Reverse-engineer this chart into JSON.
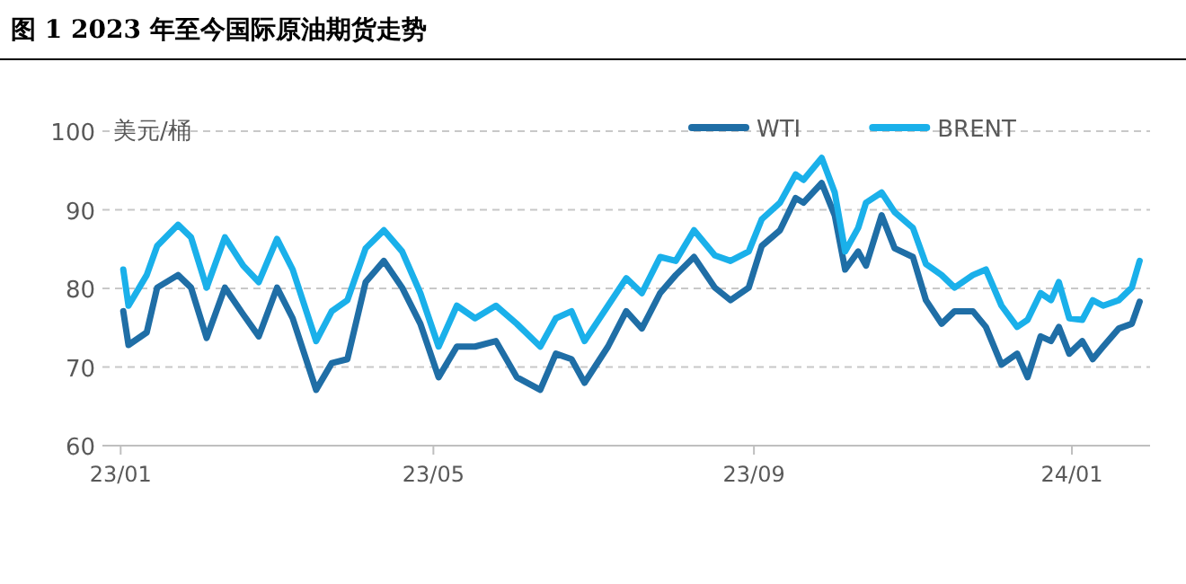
{
  "chart_data": {
    "type": "line",
    "title": "图 1 2023 年至今国际原油期货走势",
    "ylabel": "美元/桶",
    "x": [
      "2023-01-02",
      "2023-01-04",
      "2023-01-11",
      "2023-01-15",
      "2023-01-23",
      "2023-01-28",
      "2023-02-03",
      "2023-02-10",
      "2023-02-17",
      "2023-02-23",
      "2023-03-02",
      "2023-03-08",
      "2023-03-17",
      "2023-03-23",
      "2023-03-29",
      "2023-04-05",
      "2023-04-12",
      "2023-04-19",
      "2023-04-26",
      "2023-05-03",
      "2023-05-10",
      "2023-05-17",
      "2023-05-25",
      "2023-06-02",
      "2023-06-11",
      "2023-06-17",
      "2023-06-23",
      "2023-06-28",
      "2023-07-07",
      "2023-07-14",
      "2023-07-20",
      "2023-07-27",
      "2023-08-02",
      "2023-08-09",
      "2023-08-17",
      "2023-08-23",
      "2023-08-30",
      "2023-09-04",
      "2023-09-11",
      "2023-09-17",
      "2023-09-20",
      "2023-09-27",
      "2023-10-02",
      "2023-10-06",
      "2023-10-11",
      "2023-10-14",
      "2023-10-20",
      "2023-10-25",
      "2023-11-01",
      "2023-11-06",
      "2023-11-12",
      "2023-11-17",
      "2023-11-24",
      "2023-11-29",
      "2023-12-05",
      "2023-12-11",
      "2023-12-15",
      "2023-12-20",
      "2023-12-24",
      "2023-12-27",
      "2023-12-31",
      "2024-01-05",
      "2024-01-09",
      "2024-01-13",
      "2024-01-19",
      "2024-01-24",
      "2024-01-27"
    ],
    "series": [
      {
        "name": "WTI",
        "color": "#1f6ea6",
        "values": [
          77.1,
          72.8,
          74.4,
          80.1,
          81.7,
          80.1,
          73.7,
          80.1,
          76.7,
          73.9,
          80.1,
          76.2,
          67.1,
          70.5,
          71.0,
          80.8,
          83.5,
          80.1,
          75.5,
          68.7,
          72.6,
          72.6,
          73.3,
          68.7,
          67.1,
          71.7,
          71.0,
          68.0,
          72.6,
          77.1,
          74.9,
          79.4,
          81.7,
          84.0,
          80.1,
          78.5,
          80.1,
          85.4,
          87.4,
          91.5,
          90.9,
          93.4,
          89.3,
          82.4,
          84.7,
          82.9,
          89.3,
          85.1,
          84.0,
          78.5,
          75.5,
          77.1,
          77.1,
          75.1,
          70.3,
          71.7,
          68.7,
          73.9,
          73.3,
          75.1,
          71.7,
          73.3,
          71.0,
          72.6,
          74.9,
          75.5,
          78.3
        ]
      },
      {
        "name": "BRENT",
        "color": "#1ab0ea",
        "values": [
          82.4,
          77.8,
          81.7,
          85.4,
          88.1,
          86.5,
          80.1,
          86.5,
          82.9,
          80.8,
          86.3,
          82.4,
          73.3,
          77.1,
          78.5,
          85.1,
          87.4,
          84.7,
          79.4,
          72.6,
          77.8,
          76.2,
          77.8,
          75.5,
          72.6,
          76.2,
          77.1,
          73.3,
          77.8,
          81.3,
          79.4,
          84.0,
          83.5,
          87.4,
          84.2,
          83.5,
          84.7,
          88.8,
          90.9,
          94.5,
          93.8,
          96.6,
          92.2,
          84.7,
          87.7,
          90.9,
          92.2,
          89.7,
          87.7,
          83.1,
          81.7,
          80.1,
          81.7,
          82.4,
          77.8,
          75.1,
          76.0,
          79.4,
          78.5,
          80.8,
          76.2,
          76.0,
          78.5,
          77.8,
          78.5,
          80.1,
          83.5
        ]
      }
    ],
    "xlim": [
      "2022-12-25",
      "2024-01-31"
    ],
    "xticks": [
      {
        "value": "2023-01-01",
        "label": "23/01"
      },
      {
        "value": "2023-05-01",
        "label": "23/05"
      },
      {
        "value": "2023-09-01",
        "label": "23/09"
      },
      {
        "value": "2024-01-01",
        "label": "24/01"
      }
    ],
    "ylim": [
      60,
      100
    ],
    "yticks": [
      60,
      70,
      80,
      90,
      100
    ],
    "grid": "y",
    "legend": "top right",
    "marker": "none",
    "line_style": "solid"
  }
}
